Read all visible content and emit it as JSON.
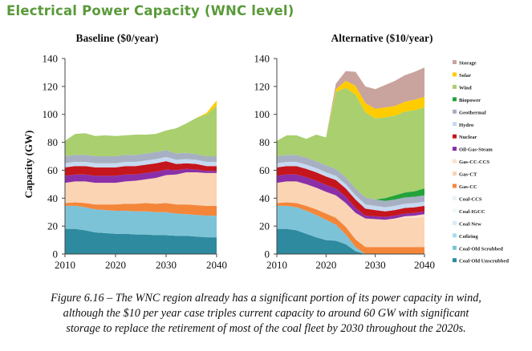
{
  "title": "Electrical Power Capacity (WNC level)",
  "caption": "Figure 6.16 – The WNC region already has a significant portion of its power capacity in wind,\nalthough the $10 per year case triples current capacity to around 60 GW with significant\nstorage to replace the retirement of most of the coal fleet by 2030 throughout the 2020s.",
  "colors": {
    "Coal-Old Unscrubbed": "#2e8a9e",
    "Coal-Old Scrubbed": "#7cc3d8",
    "Cofiring": "#a9dcec",
    "Coal-New": "#d3edf6",
    "Coal-IGCC": "#eef8fb",
    "Coal-CCS": "#e9f1f6",
    "Gas-CC": "#f4863a",
    "Gas-CT": "#fbd4b4",
    "Gas-CC-CCS": "#fde3cd",
    "Oil-Gas-Steam": "#8a2fa8",
    "Nuclear": "#c4161c",
    "Hydro": "#c6d9f0",
    "Geothermal": "#a7b0c2",
    "Biopower": "#23a33a",
    "Wind": "#a9cf6f",
    "Solar": "#ffcc00",
    "Storage": "#c9a39e"
  },
  "chart_data": [
    {
      "type": "area",
      "stacked": true,
      "title": "Baseline ($0/year)",
      "ylabel": "Capacity (GW)",
      "xlabel": "",
      "xlim": [
        2010,
        2040
      ],
      "ylim": [
        0,
        140
      ],
      "xticks": [
        2010,
        2020,
        2030,
        2040
      ],
      "yticks": [
        0,
        20,
        40,
        60,
        80,
        100,
        120,
        140
      ],
      "x": [
        2010,
        2012,
        2014,
        2016,
        2018,
        2020,
        2022,
        2024,
        2026,
        2028,
        2030,
        2032,
        2034,
        2036,
        2038,
        2040
      ],
      "series": [
        {
          "name": "Coal-Old Unscrubbed",
          "values": [
            18,
            18,
            17,
            15.5,
            15,
            14.5,
            14.5,
            14,
            14,
            13.5,
            13.5,
            13,
            13,
            12.5,
            12,
            12
          ]
        },
        {
          "name": "Coal-Old Scrubbed",
          "values": [
            16.5,
            16.5,
            16.5,
            16.5,
            16.5,
            16.5,
            16.5,
            16.5,
            16.5,
            16.5,
            16.5,
            16,
            15.5,
            15.5,
            15.5,
            15.5
          ]
        },
        {
          "name": "Cofiring",
          "values": [
            0,
            0,
            0,
            0,
            0,
            0,
            0,
            0,
            0,
            0,
            0,
            0,
            0,
            0,
            0,
            0
          ]
        },
        {
          "name": "Coal-New",
          "values": [
            0,
            0,
            0,
            0,
            0,
            0,
            0,
            0,
            0,
            0,
            0,
            0,
            0,
            0,
            0,
            0
          ]
        },
        {
          "name": "Coal-IGCC",
          "values": [
            0,
            0,
            0,
            0,
            0,
            0,
            0,
            0,
            0,
            0,
            0,
            0,
            0,
            0,
            0,
            0
          ]
        },
        {
          "name": "Coal-CCS",
          "values": [
            0,
            0,
            0,
            0,
            0,
            0,
            0,
            0,
            0,
            0,
            0,
            0,
            0,
            0,
            0,
            0
          ]
        },
        {
          "name": "Gas-CC",
          "values": [
            2,
            2.5,
            3,
            3.5,
            4,
            4.5,
            5,
            5.5,
            6,
            6,
            6.5,
            6.5,
            7,
            7,
            7,
            7
          ]
        },
        {
          "name": "Gas-CT",
          "values": [
            14.5,
            15,
            15.5,
            15.5,
            15.5,
            15.5,
            16,
            16.5,
            17,
            18.5,
            20,
            21.5,
            23,
            23.5,
            23.5,
            23.5
          ]
        },
        {
          "name": "Gas-CC-CCS",
          "values": [
            0,
            0,
            0,
            0,
            0,
            0,
            0,
            0,
            0,
            0,
            0,
            0,
            0,
            0,
            0,
            0
          ]
        },
        {
          "name": "Oil-Gas-Steam",
          "values": [
            5,
            5,
            5,
            5,
            5,
            5,
            5,
            4.5,
            4.5,
            4.5,
            4,
            3,
            2.5,
            2,
            1.5,
            1.5
          ]
        },
        {
          "name": "Nuclear",
          "values": [
            6,
            6,
            6,
            6,
            6,
            6,
            6,
            6,
            6,
            6,
            6,
            4.5,
            4,
            4,
            3.5,
            3.5
          ]
        },
        {
          "name": "Hydro",
          "values": [
            3,
            3,
            3,
            3,
            3,
            3,
            3,
            3,
            3,
            3,
            3,
            3,
            3,
            3,
            3,
            3
          ]
        },
        {
          "name": "Geothermal",
          "values": [
            5,
            5,
            5,
            5,
            5,
            5,
            5,
            5,
            5,
            5,
            5,
            4.5,
            4.5,
            4,
            4,
            4
          ]
        },
        {
          "name": "Biopower",
          "values": [
            0,
            0,
            0,
            0,
            0,
            0,
            0,
            0,
            0,
            0,
            0,
            0,
            0,
            0,
            0,
            0
          ]
        },
        {
          "name": "Wind",
          "values": [
            11,
            15,
            15.5,
            14.5,
            15,
            14.5,
            14,
            14.5,
            13.5,
            13,
            14,
            18,
            21,
            26,
            30,
            36
          ]
        },
        {
          "name": "Solar",
          "values": [
            0,
            0,
            0,
            0,
            0,
            0,
            0,
            0,
            0,
            0,
            0,
            0,
            0,
            0,
            1,
            4
          ]
        },
        {
          "name": "Storage",
          "values": [
            0,
            0,
            0,
            0,
            0,
            0,
            0,
            0,
            0,
            0,
            0,
            0,
            0,
            0,
            0,
            0
          ]
        }
      ]
    },
    {
      "type": "area",
      "stacked": true,
      "title": "Alternative ($10/year)",
      "ylabel": "",
      "xlabel": "",
      "xlim": [
        2010,
        2040
      ],
      "ylim": [
        0,
        140
      ],
      "xticks": [
        2010,
        2020,
        2030,
        2040
      ],
      "yticks": [
        0,
        20,
        40,
        60,
        80,
        100,
        120,
        140
      ],
      "legend_position": "right",
      "x": [
        2010,
        2012,
        2014,
        2016,
        2018,
        2020,
        2022,
        2024,
        2026,
        2028,
        2030,
        2032,
        2034,
        2036,
        2038,
        2040
      ],
      "series": [
        {
          "name": "Coal-Old Unscrubbed",
          "values": [
            18,
            18,
            17,
            14.5,
            12,
            10,
            9.5,
            7,
            2,
            0,
            0,
            0,
            0,
            0,
            0,
            0
          ]
        },
        {
          "name": "Coal-Old Scrubbed",
          "values": [
            16.5,
            16.5,
            16.5,
            16.5,
            16,
            14.5,
            11.5,
            7,
            3,
            0,
            0,
            0,
            0,
            0,
            0,
            0
          ]
        },
        {
          "name": "Cofiring",
          "values": [
            0,
            0,
            0,
            0,
            0,
            0,
            0,
            0,
            0,
            0,
            0,
            0,
            0,
            0,
            0,
            0
          ]
        },
        {
          "name": "Coal-New",
          "values": [
            0,
            0,
            0,
            0,
            0,
            0,
            0,
            0,
            0,
            0,
            0,
            0,
            0,
            0,
            0,
            0
          ]
        },
        {
          "name": "Coal-IGCC",
          "values": [
            0,
            0,
            0,
            0,
            0,
            0,
            0,
            0,
            0,
            0,
            0,
            0,
            0,
            0,
            0,
            0
          ]
        },
        {
          "name": "Coal-CCS",
          "values": [
            0,
            0,
            0,
            0,
            0,
            0,
            0,
            0,
            0,
            0,
            0,
            0,
            0,
            0,
            0,
            0
          ]
        },
        {
          "name": "Gas-CC",
          "values": [
            2,
            2.5,
            3,
            3.5,
            4,
            4.5,
            5,
            5.5,
            5.5,
            5,
            5,
            5,
            5,
            5,
            5,
            5
          ]
        },
        {
          "name": "Gas-CT",
          "values": [
            14.5,
            15,
            15.5,
            15.5,
            15.5,
            15.5,
            16,
            17,
            19,
            20.5,
            20,
            19.5,
            20,
            21,
            21,
            21.5
          ]
        },
        {
          "name": "Gas-CC-CCS",
          "values": [
            0,
            0,
            0,
            0,
            0,
            0,
            0,
            0,
            0,
            0,
            0,
            0,
            0.5,
            1,
            1.5,
            2
          ]
        },
        {
          "name": "Oil-Gas-Steam",
          "values": [
            5,
            5,
            5,
            5,
            5,
            5,
            5,
            4.5,
            3.5,
            2,
            2,
            2,
            2,
            2,
            2,
            2
          ]
        },
        {
          "name": "Nuclear",
          "values": [
            6,
            6,
            6,
            6,
            6,
            6,
            6,
            6,
            6,
            5,
            4.5,
            4,
            4,
            4,
            4,
            4
          ]
        },
        {
          "name": "Hydro",
          "values": [
            3,
            3,
            3,
            3,
            3,
            3,
            3,
            3,
            3,
            3,
            3,
            3,
            3,
            3,
            3,
            3
          ]
        },
        {
          "name": "Geothermal",
          "values": [
            5,
            5,
            5,
            5,
            5,
            5,
            5,
            5,
            5,
            5,
            4.5,
            4.5,
            4.5,
            4.5,
            4.5,
            4.5
          ]
        },
        {
          "name": "Biopower",
          "values": [
            0,
            0,
            0,
            0,
            0,
            0,
            0,
            0,
            0,
            0,
            0,
            2,
            3,
            3.5,
            4,
            5
          ]
        },
        {
          "name": "Wind",
          "values": [
            11,
            14,
            14,
            13.5,
            19,
            20,
            55,
            64,
            67,
            61,
            58,
            58,
            57,
            58,
            58,
            58
          ]
        },
        {
          "name": "Solar",
          "values": [
            0,
            0,
            0,
            0,
            0,
            0,
            2,
            5,
            6.5,
            6.5,
            7,
            7,
            7,
            7,
            7.5,
            7.5
          ]
        },
        {
          "name": "Storage",
          "values": [
            0,
            0,
            0,
            0,
            0,
            0,
            4,
            7,
            10,
            12,
            14,
            16,
            18,
            19,
            20,
            21
          ]
        }
      ]
    }
  ]
}
